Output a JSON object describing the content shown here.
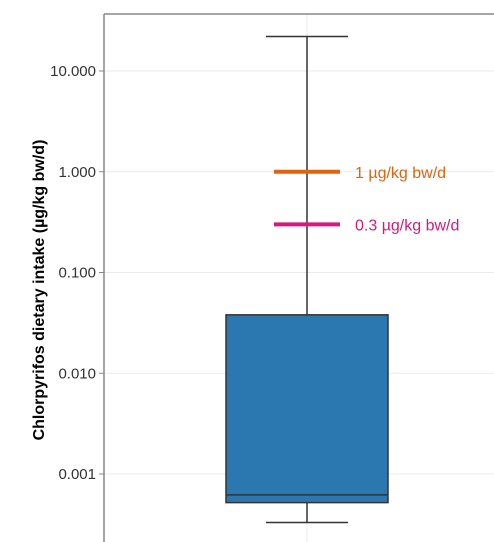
{
  "chart_data": {
    "type": "box",
    "title": "",
    "xlabel": "",
    "ylabel": "Chlorpyrifos dietary intake (µg/kg bw/d)",
    "yscale": "log",
    "ylim": [
      0.0002,
      40
    ],
    "yticks": [
      {
        "value": 10,
        "label": "10.000"
      },
      {
        "value": 1,
        "label": "1.000"
      },
      {
        "value": 0.1,
        "label": "0.100"
      },
      {
        "value": 0.01,
        "label": "0.010"
      },
      {
        "value": 0.001,
        "label": "0.001"
      }
    ],
    "grid": true,
    "box": {
      "whisker_low": 0.00033,
      "q1": 0.00052,
      "median": 0.00062,
      "q3": 0.038,
      "whisker_high": 22,
      "color": "#2b78b0"
    },
    "reference_lines": [
      {
        "value": 1,
        "label": "1 µg/kg bw/d",
        "color": "#e0630f"
      },
      {
        "value": 0.3,
        "label": "0.3 µg/kg bw/d",
        "color": "#d6197a"
      }
    ]
  }
}
